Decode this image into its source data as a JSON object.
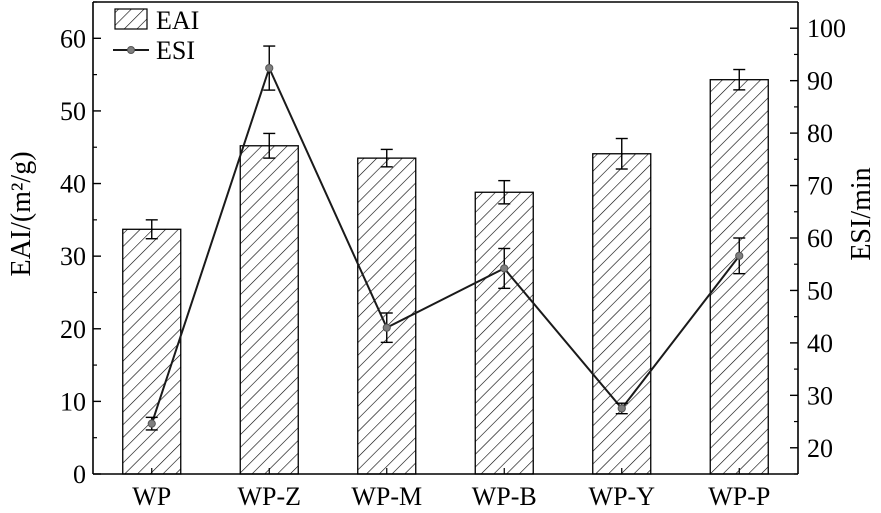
{
  "chart_data": {
    "type": "bar",
    "categories": [
      "WP",
      "WP-Z",
      "WP-M",
      "WP-B",
      "WP-Y",
      "WP-P"
    ],
    "series": [
      {
        "name": "EAI",
        "kind": "bar",
        "axis": "left",
        "values": [
          33.7,
          45.2,
          43.5,
          38.8,
          44.1,
          54.3
        ],
        "errors": [
          1.3,
          1.7,
          1.2,
          1.6,
          2.1,
          1.4
        ],
        "pattern": "diagonal-hatch"
      },
      {
        "name": "ESI",
        "kind": "line",
        "axis": "right",
        "values": [
          24.6,
          92.4,
          42.9,
          54.2,
          27.5,
          56.6
        ],
        "errors": [
          1.2,
          4.2,
          2.8,
          3.8,
          1.0,
          3.4
        ],
        "marker": "circle"
      }
    ],
    "ylabel": "EAI/(m²/g)",
    "ylabel_right": "ESI/min",
    "ylim": [
      0,
      65
    ],
    "ylim_right": [
      15,
      105
    ],
    "yticks": [
      "0",
      "10",
      "20",
      "30",
      "40",
      "50",
      "60"
    ],
    "yticks_right": [
      "20",
      "30",
      "40",
      "50",
      "60",
      "70",
      "80",
      "90",
      "100"
    ],
    "grid": false,
    "legend_position": "top-left",
    "colors": {
      "bar_fill": "#ffffff",
      "hatch": "#000000",
      "line": "#1a1a1a",
      "marker": "#7f7f7f",
      "axis": "#000000"
    }
  }
}
